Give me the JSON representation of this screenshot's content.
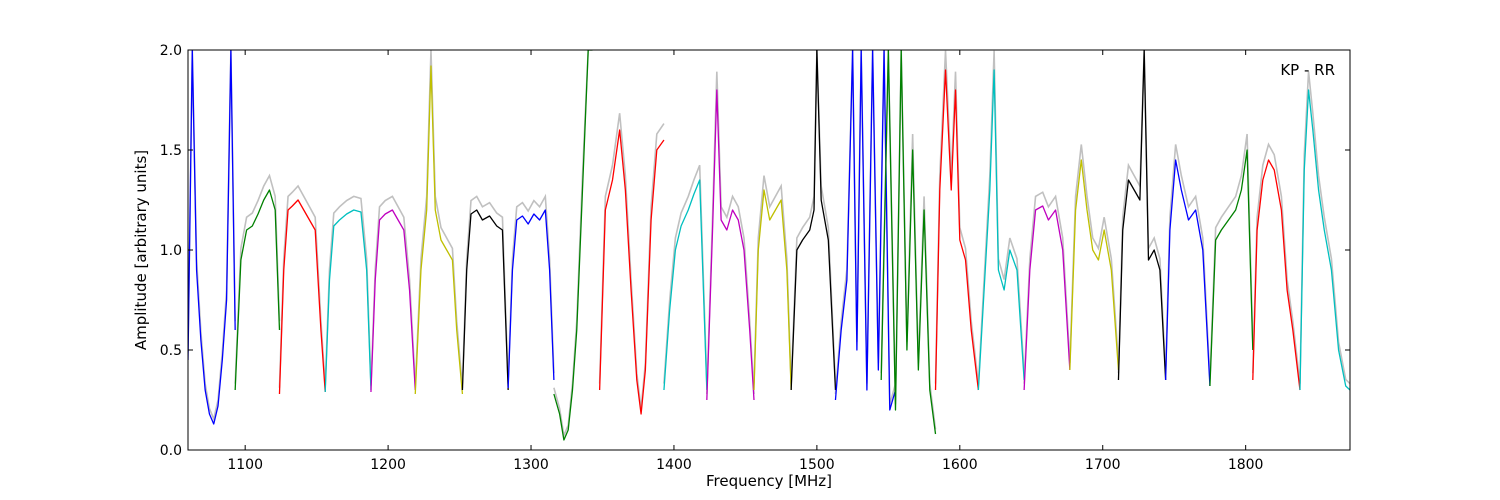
{
  "chart_data": {
    "type": "line",
    "title": "",
    "xlabel": "Frequency [MHz]",
    "ylabel": "Amplitude [arbitrary units]",
    "annotation": "KP - RR",
    "xlim": [
      1060,
      1873
    ],
    "ylim": [
      0.0,
      2.0
    ],
    "xticks": [
      1100,
      1200,
      1300,
      1400,
      1500,
      1600,
      1700,
      1800
    ],
    "yticks": [
      0.0,
      0.5,
      1.0,
      1.5,
      2.0
    ],
    "xtick_labels": [
      "1100",
      "1200",
      "1300",
      "1400",
      "1500",
      "1600",
      "1700",
      "1800"
    ],
    "ytick_labels": [
      "0.0",
      "0.5",
      "1.0",
      "1.5",
      "2.0"
    ],
    "grid": false,
    "background_color": "#c0c0c0",
    "bands": [
      {
        "color": "#0000ff",
        "x": [
          1060,
          1063,
          1066,
          1069,
          1072,
          1075,
          1078,
          1081,
          1084,
          1087,
          1090,
          1093
        ],
        "y": [
          0.45,
          2.0,
          0.9,
          0.55,
          0.3,
          0.18,
          0.13,
          0.22,
          0.45,
          0.75,
          2.0,
          0.6
        ]
      },
      {
        "color": "#008000",
        "x": [
          1093,
          1097,
          1101,
          1105,
          1109,
          1113,
          1117,
          1121,
          1124
        ],
        "y": [
          0.3,
          0.95,
          1.1,
          1.12,
          1.18,
          1.25,
          1.3,
          1.2,
          0.6
        ]
      },
      {
        "color": "#ff0000",
        "x": [
          1124,
          1127,
          1130,
          1133,
          1137,
          1141,
          1145,
          1149,
          1153,
          1156
        ],
        "y": [
          0.28,
          0.9,
          1.2,
          1.22,
          1.25,
          1.2,
          1.15,
          1.1,
          0.6,
          0.29
        ]
      },
      {
        "color": "#00bfbf",
        "x": [
          1156,
          1159,
          1162,
          1166,
          1171,
          1176,
          1181,
          1185,
          1188
        ],
        "y": [
          0.29,
          0.85,
          1.12,
          1.15,
          1.18,
          1.2,
          1.19,
          0.9,
          0.3
        ]
      },
      {
        "color": "#bf00bf",
        "x": [
          1188,
          1191,
          1194,
          1198,
          1203,
          1207,
          1211,
          1215,
          1219
        ],
        "y": [
          0.29,
          0.85,
          1.15,
          1.18,
          1.2,
          1.15,
          1.1,
          0.8,
          0.3
        ]
      },
      {
        "color": "#bfbf00",
        "x": [
          1219,
          1223,
          1227,
          1230,
          1233,
          1237,
          1241,
          1245,
          1248,
          1252
        ],
        "y": [
          0.28,
          0.9,
          1.2,
          1.92,
          1.2,
          1.05,
          1.0,
          0.95,
          0.6,
          0.28
        ]
      },
      {
        "color": "#000000",
        "x": [
          1252,
          1255,
          1258,
          1262,
          1266,
          1271,
          1276,
          1280,
          1284
        ],
        "y": [
          0.3,
          0.9,
          1.18,
          1.2,
          1.15,
          1.17,
          1.12,
          1.1,
          0.3
        ]
      },
      {
        "color": "#0000ff",
        "x": [
          1284,
          1287,
          1290,
          1294,
          1298,
          1302,
          1306,
          1310,
          1313,
          1316
        ],
        "y": [
          0.31,
          0.9,
          1.15,
          1.17,
          1.13,
          1.18,
          1.15,
          1.2,
          0.9,
          0.35
        ]
      },
      {
        "color": "#008000",
        "x": [
          1316,
          1320,
          1323,
          1326,
          1329,
          1332,
          1336,
          1340,
          1343
        ],
        "y": [
          0.28,
          0.18,
          0.05,
          0.1,
          0.3,
          0.6,
          1.3,
          2.0,
          2.0
        ]
      },
      {
        "color": "#ff0000",
        "x": [
          1348,
          1352,
          1357,
          1362,
          1366,
          1370,
          1374,
          1377,
          1380,
          1384,
          1388,
          1393
        ],
        "y": [
          0.3,
          1.2,
          1.35,
          1.6,
          1.3,
          0.8,
          0.35,
          0.18,
          0.4,
          1.15,
          1.5,
          1.55
        ]
      },
      {
        "color": "#00bfbf",
        "x": [
          1393,
          1397,
          1401,
          1405,
          1410,
          1414,
          1418,
          1423
        ],
        "y": [
          0.3,
          0.7,
          1.0,
          1.12,
          1.2,
          1.28,
          1.35,
          0.3
        ]
      },
      {
        "color": "#bf00bf",
        "x": [
          1423,
          1427,
          1430,
          1433,
          1437,
          1441,
          1445,
          1449,
          1453,
          1456
        ],
        "y": [
          0.25,
          1.1,
          1.8,
          1.15,
          1.1,
          1.2,
          1.15,
          1.0,
          0.6,
          0.25
        ]
      },
      {
        "color": "#bfbf00",
        "x": [
          1456,
          1459,
          1463,
          1467,
          1471,
          1475,
          1479,
          1482
        ],
        "y": [
          0.3,
          1.0,
          1.3,
          1.15,
          1.2,
          1.25,
          0.9,
          0.3
        ]
      },
      {
        "color": "#000000",
        "x": [
          1482,
          1486,
          1490,
          1495,
          1498,
          1500,
          1503,
          1508,
          1513
        ],
        "y": [
          0.3,
          1.0,
          1.05,
          1.1,
          1.2,
          2.0,
          1.25,
          1.05,
          0.3
        ]
      },
      {
        "color": "#0000ff",
        "x": [
          1513,
          1517,
          1521,
          1525,
          1528,
          1531,
          1535,
          1539,
          1543,
          1547,
          1551,
          1555
        ],
        "y": [
          0.25,
          0.6,
          0.85,
          2.0,
          0.5,
          2.0,
          0.3,
          2.0,
          0.4,
          2.0,
          0.2,
          0.3
        ]
      },
      {
        "color": "#008000",
        "x": [
          1545,
          1550,
          1555,
          1559,
          1563,
          1567,
          1571,
          1575,
          1579,
          1583
        ],
        "y": [
          0.35,
          2.0,
          0.2,
          2.0,
          0.5,
          1.5,
          0.4,
          1.2,
          0.3,
          0.08
        ]
      },
      {
        "color": "#ff0000",
        "x": [
          1583,
          1586,
          1590,
          1594,
          1597,
          1600,
          1604,
          1608,
          1613
        ],
        "y": [
          0.3,
          1.3,
          1.9,
          1.3,
          1.8,
          1.05,
          0.95,
          0.6,
          0.3
        ]
      },
      {
        "color": "#00bfbf",
        "x": [
          1613,
          1617,
          1621,
          1624,
          1627,
          1631,
          1635,
          1640,
          1645
        ],
        "y": [
          0.3,
          0.8,
          1.3,
          1.9,
          0.9,
          0.8,
          1.0,
          0.9,
          0.35
        ]
      },
      {
        "color": "#bf00bf",
        "x": [
          1645,
          1649,
          1653,
          1658,
          1662,
          1667,
          1672,
          1677
        ],
        "y": [
          0.3,
          0.9,
          1.2,
          1.22,
          1.15,
          1.2,
          1.0,
          0.4
        ]
      },
      {
        "color": "#bfbf00",
        "x": [
          1677,
          1681,
          1685,
          1689,
          1693,
          1697,
          1701,
          1706,
          1711
        ],
        "y": [
          0.4,
          1.2,
          1.45,
          1.2,
          1.0,
          0.95,
          1.1,
          0.9,
          0.4
        ]
      },
      {
        "color": "#000000",
        "x": [
          1711,
          1714,
          1718,
          1722,
          1726,
          1729,
          1732,
          1736,
          1740,
          1744
        ],
        "y": [
          0.35,
          1.1,
          1.35,
          1.3,
          1.25,
          2.0,
          0.95,
          1.0,
          0.9,
          0.35
        ]
      },
      {
        "color": "#0000ff",
        "x": [
          1744,
          1747,
          1751,
          1755,
          1760,
          1765,
          1770,
          1775
        ],
        "y": [
          0.35,
          1.1,
          1.45,
          1.3,
          1.15,
          1.2,
          1.0,
          0.32
        ]
      },
      {
        "color": "#008000",
        "x": [
          1775,
          1779,
          1783,
          1788,
          1793,
          1797,
          1801,
          1805
        ],
        "y": [
          0.32,
          1.05,
          1.1,
          1.15,
          1.2,
          1.3,
          1.5,
          0.5
        ]
      },
      {
        "color": "#ff0000",
        "x": [
          1805,
          1808,
          1812,
          1816,
          1820,
          1825,
          1829,
          1833,
          1838
        ],
        "y": [
          0.35,
          1.1,
          1.35,
          1.45,
          1.4,
          1.2,
          0.8,
          0.6,
          0.3
        ]
      },
      {
        "color": "#00bfbf",
        "x": [
          1838,
          1841,
          1844,
          1847,
          1851,
          1855,
          1860,
          1865,
          1870,
          1873
        ],
        "y": [
          0.3,
          1.4,
          1.8,
          1.6,
          1.3,
          1.1,
          0.9,
          0.5,
          0.32,
          0.3
        ]
      }
    ]
  }
}
